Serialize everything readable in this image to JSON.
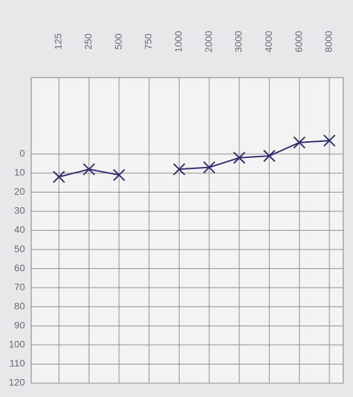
{
  "chart_data": {
    "type": "line",
    "categories": [
      "125",
      "250",
      "500",
      "750",
      "1000",
      "2000",
      "3000",
      "4000",
      "6000",
      "8000"
    ],
    "series": [
      {
        "color": "#2e2c6e",
        "values": [
          12,
          8,
          11,
          null,
          8,
          7,
          2,
          1,
          -6,
          -7
        ]
      }
    ],
    "ylim": [
      -40,
      120
    ],
    "yticks": [
      0,
      10,
      20,
      30,
      40,
      50,
      60,
      70,
      80,
      90,
      100,
      110,
      120
    ],
    "y_inverted": true,
    "grid": true
  }
}
